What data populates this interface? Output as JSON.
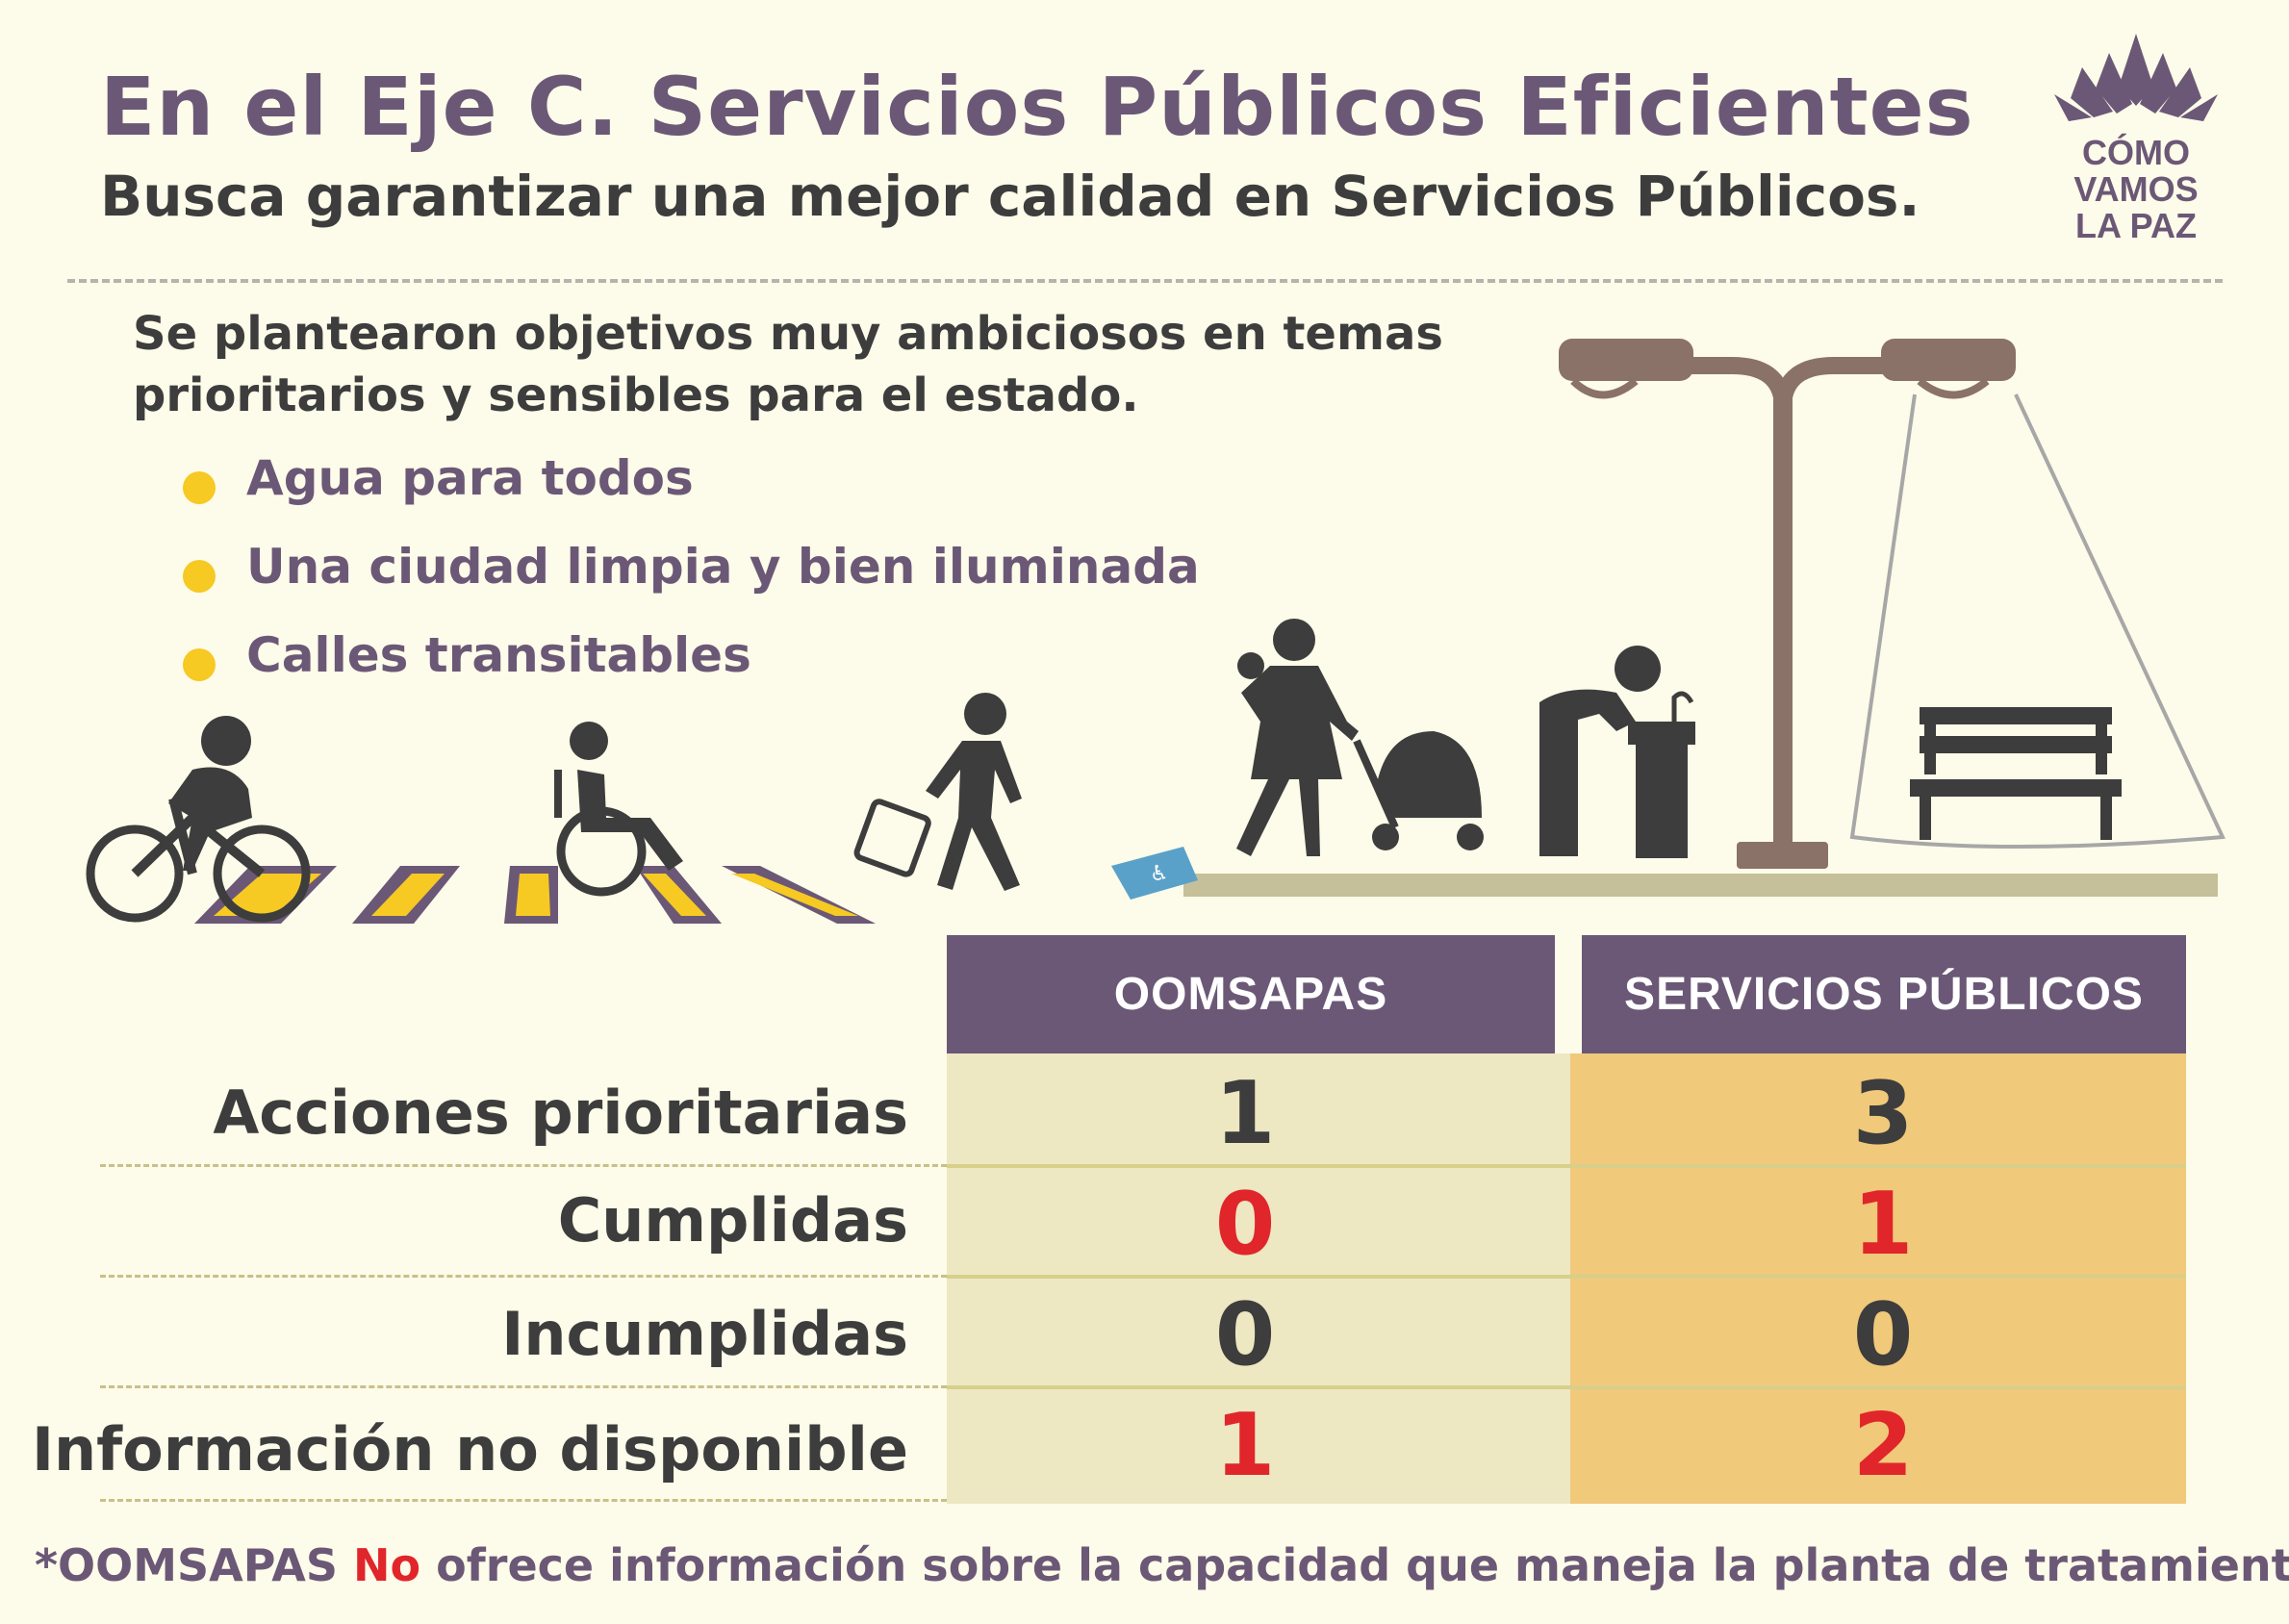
{
  "header": {
    "title": "En el Eje C.  Servicios Públicos Eficientes",
    "subtitle": "Busca garantizar una mejor calidad en Servicios Públicos."
  },
  "logo": {
    "line1": "CÓMO",
    "line2": "VAMOS",
    "line3": "LA PAZ",
    "icon": "lotus-icon"
  },
  "intro": {
    "text": "Se plantearon objetivos muy ambiciosos en temas prioritarios y sensibles para el estado.",
    "bullets": [
      "Agua para todos",
      "Una ciudad limpia y bien iluminada",
      "Calles transitables"
    ]
  },
  "colors": {
    "purple": "#6b5876",
    "dark": "#3d3d3d",
    "yellow": "#f6c923",
    "red": "#e0262a",
    "cream": "#fdfbe9",
    "olive": "#ede7c2",
    "orange": "#f0c97a"
  },
  "table": {
    "columns": [
      "OOMSAPAS",
      "SERVICIOS PÚBLICOS"
    ],
    "rows": [
      {
        "label": "Acciones prioritarias",
        "values": [
          "1",
          "3"
        ]
      },
      {
        "label": "Cumplidas",
        "values": [
          "0",
          "1"
        ]
      },
      {
        "label": "Incumplidas",
        "values": [
          "0",
          "0"
        ]
      },
      {
        "label": "Información no disponible",
        "values": [
          "1",
          "2"
        ]
      }
    ]
  },
  "footnote": {
    "prefix": "*OOMSAPAS ",
    "emphasis": "No",
    "suffix": " ofrece información sobre la capacidad que maneja la planta de tratamiento."
  }
}
